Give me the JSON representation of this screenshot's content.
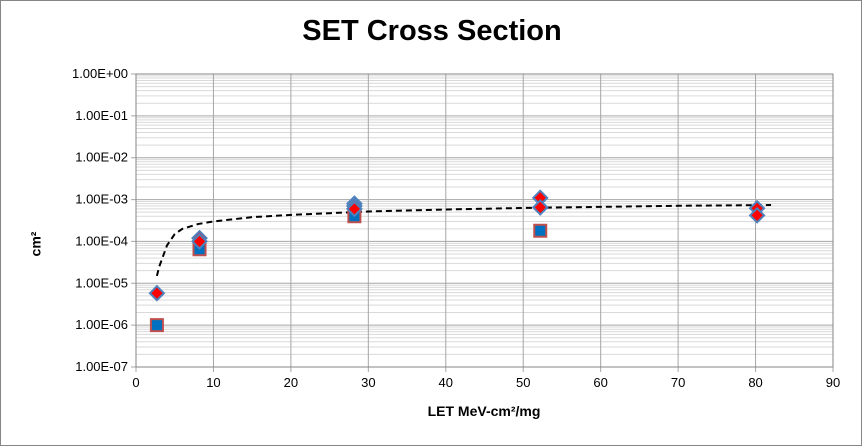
{
  "chart_data": {
    "type": "scatter",
    "title": "SET Cross Section",
    "xlabel": "LET MeV-cm²/mg",
    "ylabel": "cm²",
    "xlim": [
      0,
      90
    ],
    "ylim": [
      1e-07,
      1
    ],
    "yscale": "log",
    "grid": true,
    "legend": "none",
    "x_ticks": [
      "0",
      "10",
      "20",
      "30",
      "40",
      "50",
      "60",
      "70",
      "80",
      "90"
    ],
    "y_ticks": [
      "1.00E-07",
      "1.00E-06",
      "1.00E-05",
      "1.00E-04",
      "1.00E-03",
      "1.00E-02",
      "1.00E-01",
      "1.00E+00"
    ],
    "series": [
      {
        "marker": "diamond",
        "fill": "#ff0000",
        "edge": "#4f81bd",
        "x": [
          2.7,
          8.2,
          8.2,
          28.2,
          28.2,
          28.2,
          52.2,
          52.2,
          80.2,
          80.2
        ],
        "y": [
          5.8e-06,
          0.00012,
          0.0001,
          0.0008,
          0.0007,
          0.0006,
          0.0011,
          0.00065,
          0.00062,
          0.00042
        ]
      },
      {
        "marker": "square",
        "fill": "#0070c0",
        "edge": "#c0504d",
        "x": [
          2.7,
          8.2,
          28.2,
          52.2
        ],
        "y": [
          1e-06,
          6.5e-05,
          0.0004,
          0.00018
        ]
      }
    ],
    "trendline": {
      "style": "dashed",
      "color": "#000000",
      "x": [
        2.7,
        3,
        4,
        5,
        6,
        8,
        10,
        15,
        20,
        30,
        40,
        50,
        60,
        70,
        82
      ],
      "y": [
        1.5e-05,
        2.5e-05,
        8e-05,
        0.00015,
        0.0002,
        0.00026,
        0.0003,
        0.00038,
        0.00043,
        0.00052,
        0.00058,
        0.00063,
        0.00067,
        0.00071,
        0.00074
      ]
    }
  }
}
